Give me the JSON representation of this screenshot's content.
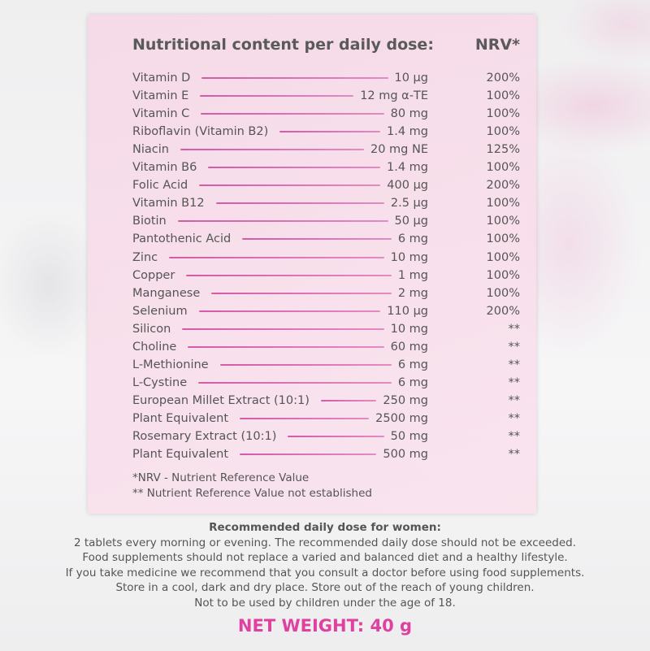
{
  "panel": {
    "title": "Nutritional content per daily dose:",
    "nrv_header": "NRV*",
    "rows": [
      [
        "Vitamin D",
        "10 µg",
        "200%"
      ],
      [
        "Vitamin E",
        "12 mg α-TE",
        "100%"
      ],
      [
        "Vitamin C",
        "80 mg",
        "100%"
      ],
      [
        "Riboflavin (Vitamin B2)",
        "1.4 mg",
        "100%"
      ],
      [
        "Niacin",
        "20 mg NE",
        "125%"
      ],
      [
        "Vitamin B6",
        "1.4 mg",
        "100%"
      ],
      [
        "Folic Acid",
        "400 µg",
        "200%"
      ],
      [
        "Vitamin B12",
        "2.5 µg",
        "100%"
      ],
      [
        "Biotin",
        "50 µg",
        "100%"
      ],
      [
        "Pantothenic Acid",
        "6 mg",
        "100%"
      ],
      [
        "Zinc",
        "10 mg",
        "100%"
      ],
      [
        "Copper",
        "1 mg",
        "100%"
      ],
      [
        "Manganese",
        "2 mg",
        "100%"
      ],
      [
        "Selenium",
        "110 µg",
        "200%"
      ],
      [
        "Silicon",
        "10 mg",
        "**"
      ],
      [
        "Choline",
        "60 mg",
        "**"
      ],
      [
        "L-Methionine",
        "6 mg",
        "**"
      ],
      [
        "L-Cystine",
        "6 mg",
        "**"
      ],
      [
        "European Millet Extract (10:1)",
        "250 mg",
        "**"
      ],
      [
        "Plant Equivalent",
        "2500 mg",
        "**"
      ],
      [
        "Rosemary Extract (10:1)",
        "50 mg",
        "**"
      ],
      [
        "Plant Equivalent",
        "500 mg",
        "**"
      ]
    ],
    "footnotes": [
      "*NRV - Nutrient Reference Value",
      "** Nutrient Reference Value not established"
    ]
  },
  "info": {
    "title": "Recommended daily dose for women:",
    "lines": [
      "2 tablets every morning or evening. The recommended daily dose should not be exceeded.",
      "Food supplements should not replace a varied and balanced diet and a healthy lifestyle.",
      "If you take medicine we recommend that you consult a doctor before using food supplements.",
      "Store in a cool, dark and dry place. Store out of the reach of young children.",
      "Not to be used by children under the age of 18."
    ],
    "net_weight": "NET WEIGHT: 40 g"
  }
}
